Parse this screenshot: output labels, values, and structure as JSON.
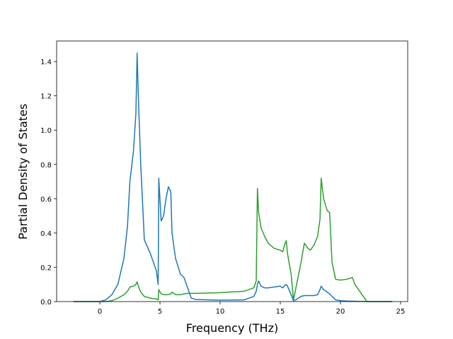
{
  "chart_data": {
    "type": "line",
    "xlabel": "Frequency (THz)",
    "ylabel": "Partial Density of States",
    "x": [
      -2.2,
      0,
      0.5,
      1,
      1.5,
      2,
      2.3,
      2.5,
      2.8,
      3.0,
      3.1,
      3.2,
      3.4,
      3.7,
      4.2,
      4.7,
      4.85,
      4.9,
      5.1,
      5.3,
      5.5,
      5.7,
      5.9,
      6.0,
      6.3,
      6.7,
      7.0,
      7.3,
      7.6,
      8,
      10,
      12,
      12.8,
      13.0,
      13.1,
      13.2,
      13.4,
      13.7,
      14,
      14.5,
      15,
      15.2,
      15.4,
      15.5,
      15.6,
      15.9,
      16.1,
      16.3,
      16.7,
      17,
      17.3,
      17.5,
      17.8,
      18.1,
      18.3,
      18.4,
      18.6,
      18.9,
      19.1,
      19.3,
      19.6,
      20,
      20.5,
      21,
      21.2,
      21.6,
      22,
      22.2,
      24.3
    ],
    "series": [
      {
        "color": "#1f77b4",
        "values": [
          0,
          0,
          0.01,
          0.04,
          0.1,
          0.25,
          0.44,
          0.7,
          0.88,
          1.1,
          1.45,
          1.2,
          0.8,
          0.36,
          0.28,
          0.18,
          0.1,
          0.72,
          0.47,
          0.5,
          0.6,
          0.67,
          0.64,
          0.4,
          0.25,
          0.16,
          0.14,
          0.08,
          0.02,
          0.012,
          0.008,
          0.01,
          0.03,
          0.06,
          0.1,
          0.12,
          0.09,
          0.08,
          0.08,
          0.085,
          0.09,
          0.08,
          0.095,
          0.1,
          0.09,
          0.04,
          0.005,
          0.01,
          0.03,
          0.035,
          0.035,
          0.035,
          0.035,
          0.04,
          0.07,
          0.09,
          0.07,
          0.055,
          0.045,
          0.03,
          0.01,
          0.005,
          0.003,
          0.002,
          0.002,
          0.001,
          0.001,
          0,
          0
        ]
      },
      {
        "color": "#2ca02c",
        "values": [
          0,
          0,
          0,
          0.005,
          0.02,
          0.04,
          0.06,
          0.085,
          0.09,
          0.1,
          0.115,
          0.09,
          0.055,
          0.03,
          0.02,
          0.015,
          0.01,
          0.07,
          0.045,
          0.04,
          0.04,
          0.04,
          0.045,
          0.055,
          0.04,
          0.04,
          0.045,
          0.048,
          0.048,
          0.048,
          0.052,
          0.06,
          0.08,
          0.12,
          0.66,
          0.52,
          0.43,
          0.38,
          0.34,
          0.31,
          0.3,
          0.29,
          0.34,
          0.355,
          0.28,
          0.16,
          0.01,
          0.08,
          0.22,
          0.34,
          0.31,
          0.3,
          0.33,
          0.38,
          0.48,
          0.72,
          0.6,
          0.53,
          0.52,
          0.23,
          0.13,
          0.125,
          0.13,
          0.14,
          0.1,
          0.06,
          0.02,
          0,
          0
        ]
      }
    ],
    "xlim": [
      -3.59,
      25.59
    ],
    "ylim": [
      0,
      1.52
    ],
    "xticks": [
      0,
      5,
      10,
      15,
      20,
      25
    ],
    "yticks": [
      {
        "value": 0,
        "label": "0.0"
      },
      0.2,
      0.4,
      0.6,
      0.8,
      {
        "value": 1,
        "label": "1.0"
      },
      1.2,
      1.4
    ]
  }
}
